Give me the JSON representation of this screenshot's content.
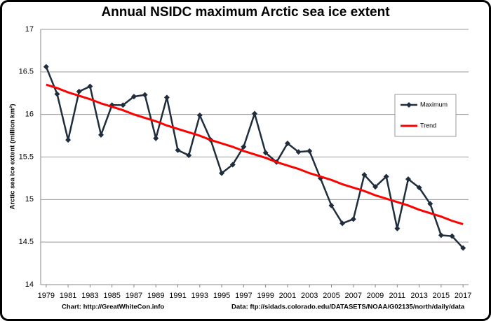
{
  "chart_data": {
    "type": "line",
    "title": "Annual NSIDC maximum Arctic sea ice extent",
    "ylabel": "Arctic sea ice extent (million km²)",
    "source_left": "Chart: http://GreatWhiteCon.info",
    "source_right": "Data: ftp://sidads.colorado.edu/DATASETS/NOAA/G02135/north/daily/data",
    "x": [
      1979,
      1980,
      1981,
      1982,
      1983,
      1984,
      1985,
      1986,
      1987,
      1988,
      1989,
      1990,
      1991,
      1992,
      1993,
      1994,
      1995,
      1996,
      1997,
      1998,
      1999,
      2000,
      2001,
      2002,
      2003,
      2004,
      2005,
      2006,
      2007,
      2008,
      2009,
      2010,
      2011,
      2012,
      2013,
      2014,
      2015,
      2016,
      2017
    ],
    "series": [
      {
        "name": "Maximum",
        "color": "#1f2d3d",
        "marker": true,
        "values": [
          16.56,
          16.24,
          15.7,
          16.27,
          16.33,
          15.76,
          16.11,
          16.11,
          16.21,
          16.23,
          15.72,
          16.2,
          15.58,
          15.52,
          15.99,
          15.7,
          15.31,
          15.41,
          15.62,
          16.01,
          15.55,
          15.44,
          15.66,
          15.56,
          15.57,
          15.25,
          14.93,
          14.72,
          14.77,
          15.29,
          15.15,
          15.27,
          14.66,
          15.24,
          15.14,
          14.95,
          14.58,
          14.57,
          14.43
        ]
      },
      {
        "name": "Trend",
        "color": "#ff0000",
        "marker": false,
        "values": [
          16.35,
          16.31,
          16.26,
          16.22,
          16.18,
          16.13,
          16.09,
          16.05,
          16.0,
          15.96,
          15.92,
          15.87,
          15.83,
          15.79,
          15.75,
          15.7,
          15.66,
          15.62,
          15.57,
          15.53,
          15.49,
          15.44,
          15.4,
          15.36,
          15.31,
          15.27,
          15.23,
          15.18,
          15.14,
          15.1,
          15.05,
          15.01,
          14.97,
          14.93,
          14.88,
          14.84,
          14.8,
          14.75,
          14.71
        ]
      }
    ],
    "xlim": [
      1978.5,
      2017.5
    ],
    "xticks": [
      1979,
      1981,
      1983,
      1985,
      1987,
      1989,
      1991,
      1993,
      1995,
      1997,
      1999,
      2001,
      2003,
      2005,
      2007,
      2009,
      2011,
      2013,
      2015,
      2017
    ],
    "ylim": [
      14,
      17
    ],
    "yticks": [
      14,
      14.5,
      15,
      15.5,
      16,
      16.5,
      17
    ],
    "grid": true,
    "legend": "right"
  }
}
